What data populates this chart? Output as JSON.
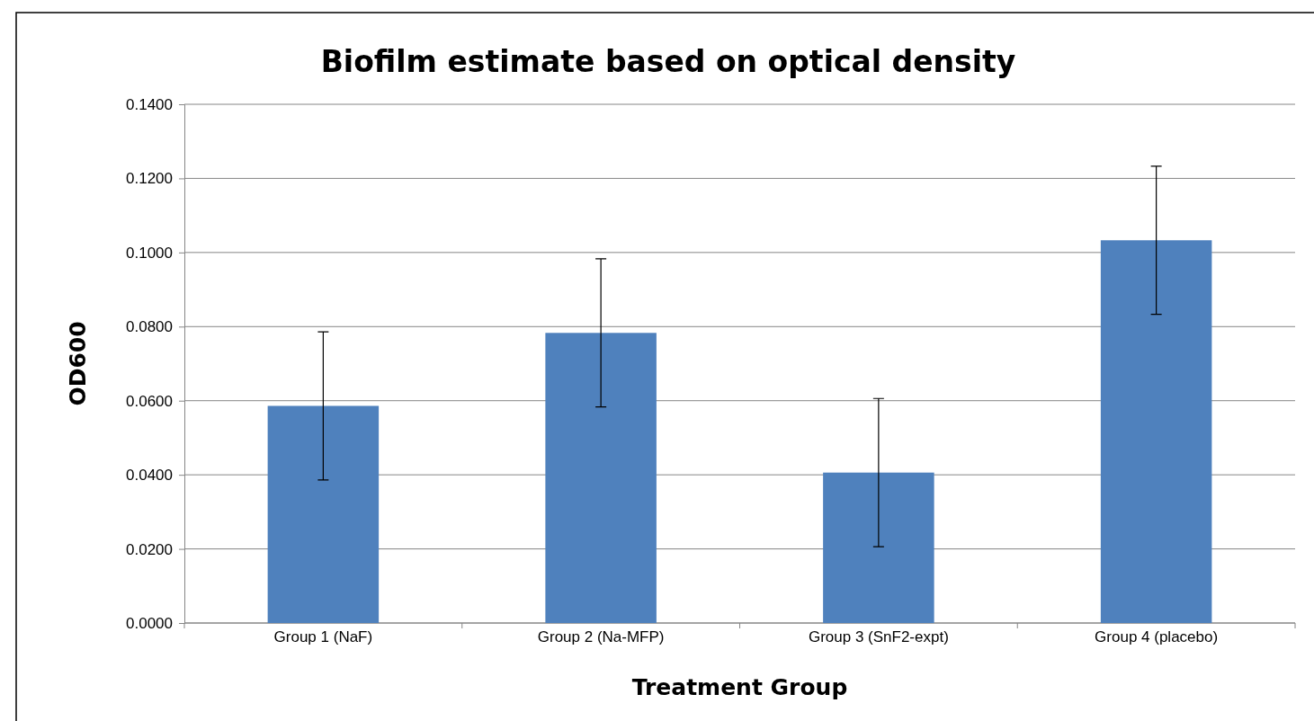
{
  "chart_data": {
    "type": "bar",
    "title": "Biofilm estimate based on optical density",
    "xlabel": "Treatment Group",
    "ylabel": "OD600",
    "categories": [
      "Group 1 (NaF)",
      "Group 2 (Na-MFP)",
      "Group 3 (SnF2-expt)",
      "Group 4 (placebo)"
    ],
    "values": [
      0.0586,
      0.0783,
      0.0406,
      0.1033
    ],
    "errors": [
      0.02,
      0.02,
      0.02,
      0.02
    ],
    "color": "#4f81bd",
    "ylim": [
      0,
      0.14
    ],
    "yticks": [
      {
        "value": 0,
        "label": "0.0000"
      },
      {
        "value": 0.02,
        "label": "0.0200"
      },
      {
        "value": 0.04,
        "label": "0.0400"
      },
      {
        "value": 0.06,
        "label": "0.0600"
      },
      {
        "value": 0.08,
        "label": "0.0800"
      },
      {
        "value": 0.1,
        "label": "0.1000"
      },
      {
        "value": 0.12,
        "label": "0.1200"
      },
      {
        "value": 0.14,
        "label": "0.1400"
      }
    ],
    "grid": "y"
  }
}
